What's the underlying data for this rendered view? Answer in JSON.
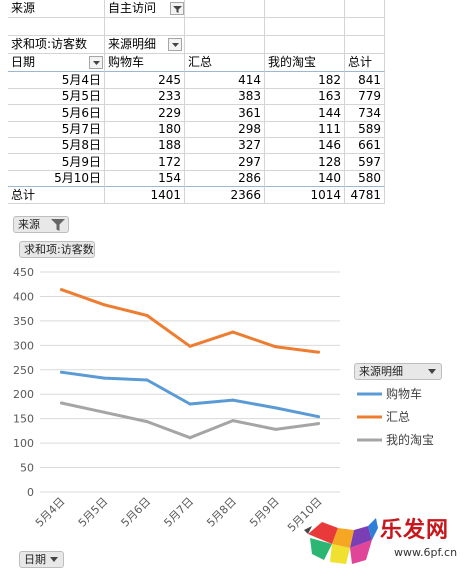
{
  "report_filter": {
    "label": "来源",
    "value": "自主访问"
  },
  "pivot": {
    "value_label": "求和项:访客数",
    "column_field": "来源明细",
    "row_field": "日期",
    "columns": [
      "购物车",
      "汇总",
      "我的淘宝",
      "总计"
    ],
    "rows": [
      {
        "date": "5月4日",
        "values": [
          "245",
          "414",
          "182",
          "841"
        ]
      },
      {
        "date": "5月5日",
        "values": [
          "233",
          "383",
          "163",
          "779"
        ]
      },
      {
        "date": "5月6日",
        "values": [
          "229",
          "361",
          "144",
          "734"
        ]
      },
      {
        "date": "5月7日",
        "values": [
          "180",
          "298",
          "111",
          "589"
        ]
      },
      {
        "date": "5月8日",
        "values": [
          "188",
          "327",
          "146",
          "661"
        ]
      },
      {
        "date": "5月9日",
        "values": [
          "172",
          "297",
          "128",
          "597"
        ]
      },
      {
        "date": "5月10日",
        "values": [
          "154",
          "286",
          "140",
          "580"
        ]
      }
    ],
    "total_label": "总计",
    "totals": [
      "1401",
      "2366",
      "1014",
      "4781"
    ]
  },
  "chart_buttons": {
    "source": "来源",
    "value": "求和项:访客数",
    "legend_field": "来源明细",
    "axis_field": "日期"
  },
  "chart_data": {
    "type": "line",
    "categories": [
      "5月4日",
      "5月5日",
      "5月6日",
      "5月7日",
      "5月8日",
      "5月9日",
      "5月10日"
    ],
    "series": [
      {
        "name": "购物车",
        "values": [
          245,
          233,
          229,
          180,
          188,
          172,
          154
        ],
        "color": "#5b9bd5"
      },
      {
        "name": "汇总",
        "values": [
          414,
          383,
          361,
          298,
          327,
          297,
          286
        ],
        "color": "#ed7d31"
      },
      {
        "name": "我的淘宝",
        "values": [
          182,
          163,
          144,
          111,
          146,
          128,
          140
        ],
        "color": "#a5a5a5"
      }
    ],
    "ylim": [
      0,
      450
    ],
    "yticks": [
      0,
      50,
      100,
      150,
      200,
      250,
      300,
      350,
      400,
      450
    ],
    "grid": true,
    "legend_position": "right"
  },
  "watermark": {
    "brand": "乐发网",
    "url": "www.6pf.cn"
  }
}
